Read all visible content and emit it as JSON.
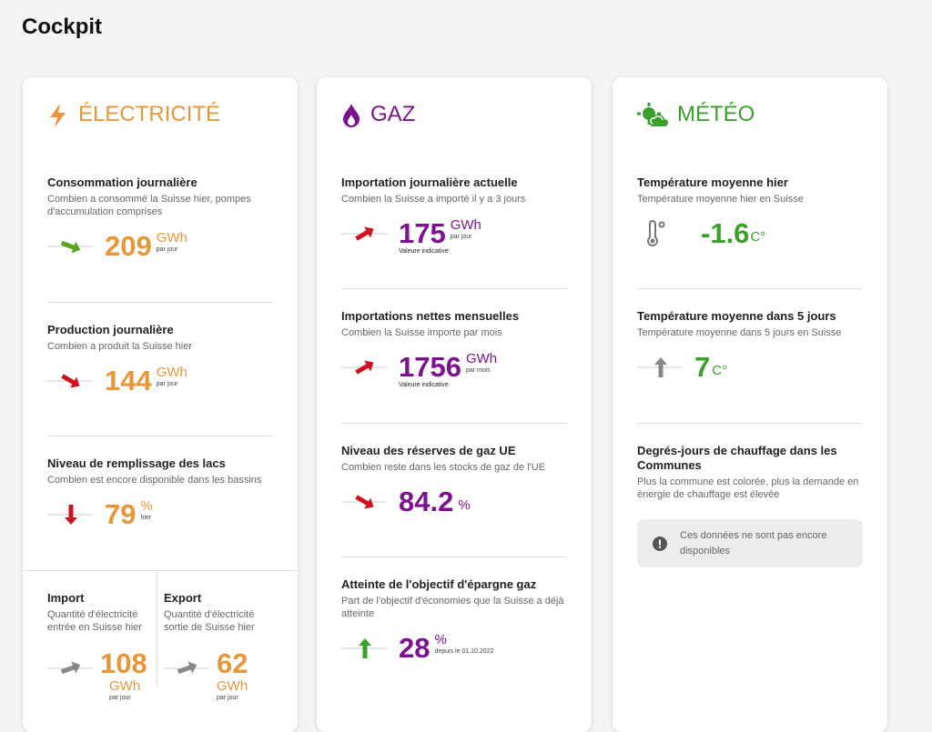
{
  "header": {
    "title": "Cockpit"
  },
  "cards": [
    {
      "title": "ÉLECTRICITÉ",
      "sections": [
        {
          "title": "Consommation journalière",
          "description": "Combien a consommé la Suisse hier, pompes d'accumulation comprises",
          "value": 209,
          "unit": "GWh",
          "period": "par jour"
        },
        {
          "title": "Production journalière",
          "description": "Combien a produit la Suisse hier",
          "value": 144,
          "unit": "GWh",
          "period": "par jour"
        },
        {
          "title": "Niveau de remplissage des lacs",
          "description": "Combien est encore disponible dans les bassins",
          "value": 79,
          "unit": "%",
          "period": "hier"
        },
        {
          "title": "Import",
          "description": "Quantité d'électricité entrée en Suisse hier",
          "value": 108,
          "unit": "GWh",
          "period": "par jour"
        },
        {
          "title": "Export",
          "description": "Quantité d'électricité sortie de Suisse hier",
          "value": 62,
          "unit": "GWh",
          "period": "par jour"
        }
      ]
    },
    {
      "title": "GAZ",
      "sections": [
        {
          "title": "Importation journalière actuelle",
          "description": "Combien la Suisse a importé il y a 3 jours",
          "value": 175,
          "unit": "GWh",
          "period": "par jour",
          "note": "Valeure indicative"
        },
        {
          "title": "Importations nettes mensuelles",
          "description": "Combien la Suisse importe par mois",
          "value": 1756,
          "unit": "GWh",
          "period": "par mois",
          "note": "Valeure indicative"
        },
        {
          "title": "Niveau des réserves de gaz UE",
          "description": "Combien reste dans les stocks de gaz de l'UE",
          "value": 84.2,
          "unit": "%"
        },
        {
          "title": "Atteinte de l'objectif d'épargne gaz",
          "description": "Part de l'objectif d'économies que la Suisse a déjà atteinte",
          "value": 28,
          "unit": "%",
          "period": "depuis le 01.10.2022"
        }
      ]
    },
    {
      "title": "MÉTÉO",
      "sections": [
        {
          "title": "Température moyenne hier",
          "description": "Température moyenne hier en Suisse",
          "value": -1.6,
          "unit": "C°"
        },
        {
          "title": "Température moyenne dans 5 jours",
          "description": "Température moyenne dans 5 jours en Suisse",
          "value": 7,
          "unit": "C°"
        },
        {
          "title": "Degrés-jours de chauffage dans les Communes",
          "description": "Plus la commune est colorée, plus la demande en énergie de chauffage est élevée",
          "notice": "Ces données ne sont pas encore disponibles"
        }
      ]
    }
  ]
}
